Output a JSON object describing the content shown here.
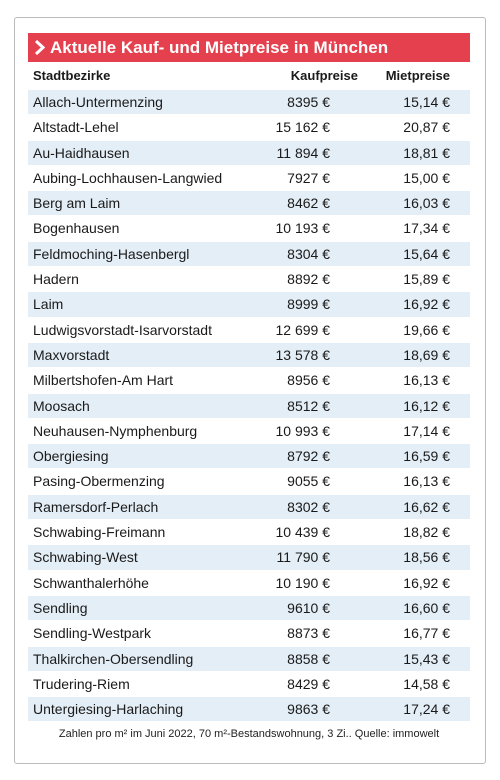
{
  "title": "Aktuelle Kauf- und Mietpreise in München",
  "table": {
    "headers": [
      "Stadtbezirke",
      "Kaufpreise",
      "Mietpreise"
    ],
    "rows": [
      [
        "Allach-Untermenzing",
        "8395 €",
        "15,14 €"
      ],
      [
        "Altstadt-Lehel",
        "15 162 €",
        "20,87 €"
      ],
      [
        "Au-Haidhausen",
        "11 894 €",
        "18,81 €"
      ],
      [
        "Aubing-Lochhausen-Langwied",
        "7927 €",
        "15,00 €"
      ],
      [
        "Berg am Laim",
        "8462 €",
        "16,03 €"
      ],
      [
        "Bogenhausen",
        "10 193 €",
        "17,34 €"
      ],
      [
        "Feldmoching-Hasenbergl",
        "8304 €",
        "15,64 €"
      ],
      [
        "Hadern",
        "8892 €",
        "15,89 €"
      ],
      [
        "Laim",
        "8999 €",
        "16,92 €"
      ],
      [
        "Ludwigsvorstadt-Isarvorstadt",
        "12 699 €",
        "19,66 €"
      ],
      [
        "Maxvorstadt",
        "13 578 €",
        "18,69 €"
      ],
      [
        "Milbertshofen-Am Hart",
        "8956 €",
        "16,13 €"
      ],
      [
        "Moosach",
        "8512 €",
        "16,12 €"
      ],
      [
        "Neuhausen-Nymphenburg",
        "10 993 €",
        "17,14 €"
      ],
      [
        "Obergiesing",
        "8792 €",
        "16,59 €"
      ],
      [
        "Pasing-Obermenzing",
        "9055 €",
        "16,13 €"
      ],
      [
        "Ramersdorf-Perlach",
        "8302 €",
        "16,62 €"
      ],
      [
        "Schwabing-Freimann",
        "10 439 €",
        "18,82 €"
      ],
      [
        "Schwabing-West",
        "11 790 €",
        "18,56 €"
      ],
      [
        "Schwanthalerhöhe",
        "10 190 €",
        "16,92 €"
      ],
      [
        "Sendling",
        "9610 €",
        "16,60 €"
      ],
      [
        "Sendling-Westpark",
        "8873 €",
        "16,77 €"
      ],
      [
        "Thalkirchen-Obersendling",
        "8858 €",
        "15,43 €"
      ],
      [
        "Trudering-Riem",
        "8429 €",
        "14,58 €"
      ],
      [
        "Untergiesing-Harlaching",
        "9863 €",
        "17,24 €"
      ]
    ]
  },
  "footnote": "Zahlen pro m² im Juni 2022, 70 m²-Bestandswohnung, 3 Zi.. Quelle: immowelt"
}
